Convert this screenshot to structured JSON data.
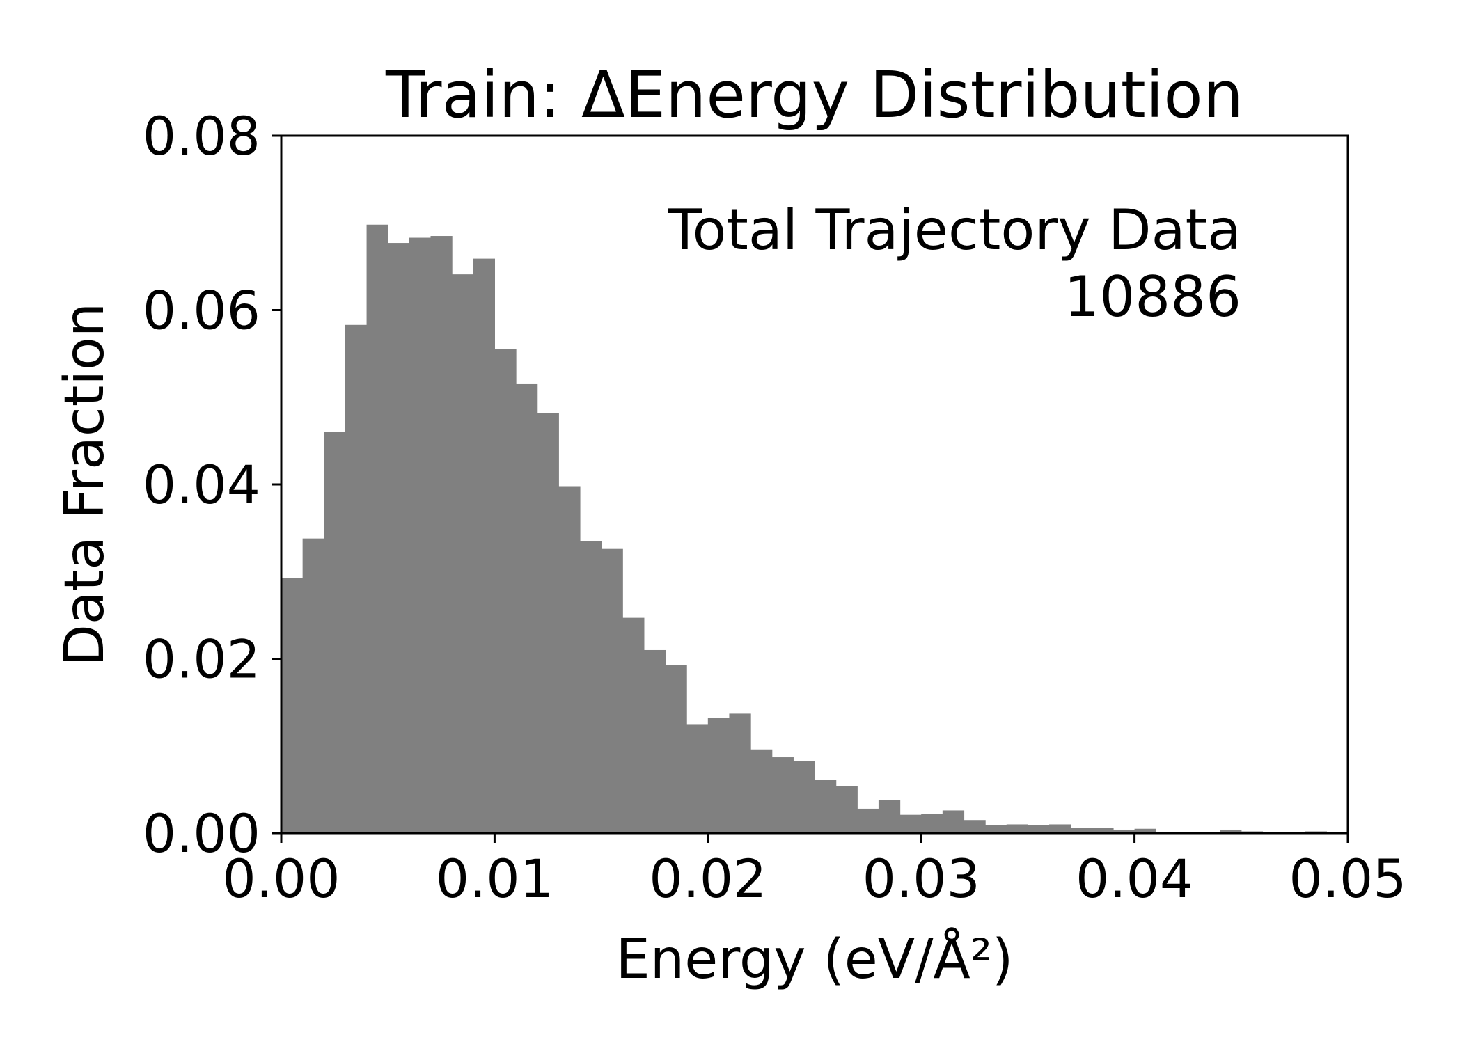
{
  "chart_data": {
    "type": "bar",
    "title": "Train: ΔEnergy Distribution",
    "xlabel": "Energy (eV/Å²)",
    "ylabel": "Data Fraction",
    "xlim": [
      0.0,
      0.05
    ],
    "ylim": [
      0.0,
      0.08
    ],
    "x_ticks": [
      "0.00",
      "0.01",
      "0.02",
      "0.03",
      "0.04",
      "0.05"
    ],
    "y_ticks": [
      "0.00",
      "0.02",
      "0.04",
      "0.06",
      "0.08"
    ],
    "bar_color": "#808080",
    "bin_width": 0.001,
    "bin_starts": [
      0.0,
      0.001,
      0.002,
      0.003,
      0.004,
      0.005,
      0.006,
      0.007,
      0.008,
      0.009,
      0.01,
      0.011,
      0.012,
      0.013,
      0.014,
      0.015,
      0.016,
      0.017,
      0.018,
      0.019,
      0.02,
      0.021,
      0.022,
      0.023,
      0.024,
      0.025,
      0.026,
      0.027,
      0.028,
      0.029,
      0.03,
      0.031,
      0.032,
      0.033,
      0.034,
      0.035,
      0.036,
      0.037,
      0.038,
      0.039,
      0.04,
      0.041,
      0.042,
      0.043,
      0.044,
      0.045,
      0.046,
      0.047,
      0.048,
      0.049
    ],
    "values": [
      0.0293,
      0.0338,
      0.046,
      0.0583,
      0.0698,
      0.0677,
      0.0683,
      0.0685,
      0.0641,
      0.0659,
      0.0555,
      0.0515,
      0.0482,
      0.0398,
      0.0335,
      0.0326,
      0.0247,
      0.021,
      0.0193,
      0.0125,
      0.0132,
      0.0137,
      0.0096,
      0.0087,
      0.0083,
      0.0061,
      0.0054,
      0.0028,
      0.0038,
      0.0021,
      0.0022,
      0.0026,
      0.0015,
      0.0009,
      0.001,
      0.0009,
      0.001,
      0.0006,
      0.0006,
      0.0004,
      0.0005,
      0.0001,
      0.0001,
      0.0001,
      0.0004,
      0.0002,
      0.0001,
      0.0001,
      0.0002,
      0.0001
    ],
    "annotation": {
      "line1": "Total Trajectory Data",
      "line2": "10886"
    }
  }
}
